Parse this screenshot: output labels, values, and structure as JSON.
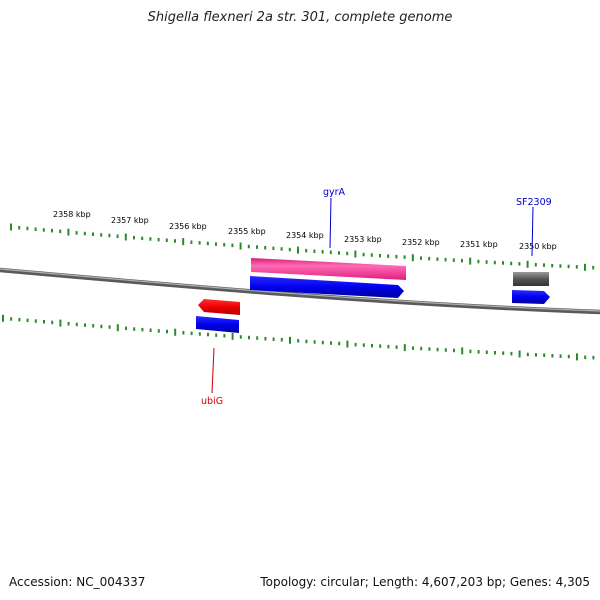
{
  "title": "Shigella flexneri 2a str. 301, complete genome",
  "accession": "Accession: NC_004337",
  "summary": "Topology: circular; Length: 4,607,203 bp; Genes: 4,305",
  "scale_labels": [
    "2358 kbp",
    "2357 kbp",
    "2356 kbp",
    "2355 kbp",
    "2354 kbp",
    "2353 kbp",
    "2352 kbp",
    "2351 kbp",
    "2350 kbp"
  ],
  "genes": [
    {
      "name": "gyrA",
      "color": "#0000cc"
    },
    {
      "name": "SF2309",
      "color": "#0000cc"
    },
    {
      "name": "ubiG",
      "color": "#cc0000"
    }
  ],
  "colors": {
    "backbone": "#7a7a7a",
    "ticks": "#2a8a2a",
    "gene_pink": "#ee2b8a",
    "cds_blue": "#0000ee",
    "gene_red": "#ee0000",
    "gene_gray": "#666666"
  }
}
